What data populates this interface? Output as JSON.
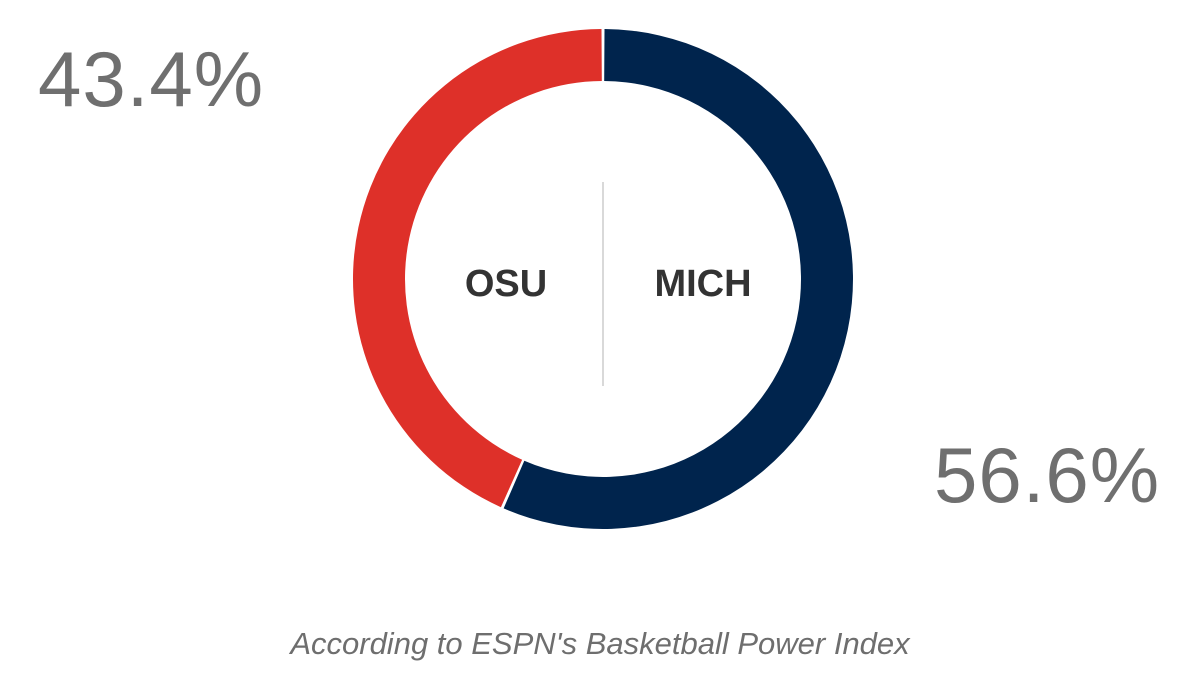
{
  "chart_data": {
    "type": "pie",
    "categories": [
      "OSU",
      "MICH"
    ],
    "values": [
      43.4,
      56.6
    ],
    "value_labels": [
      "43.4%",
      "56.6%"
    ],
    "colors": [
      "#de3029",
      "#00244d"
    ],
    "caption": "According to ESPN's Basketball Power Index"
  }
}
